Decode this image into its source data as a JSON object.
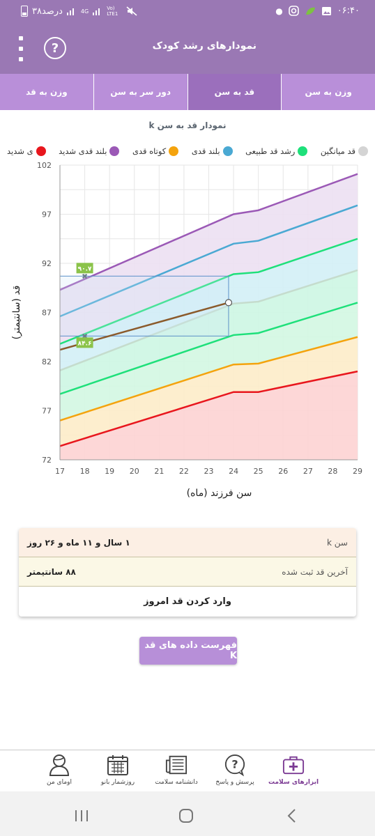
{
  "status_bar": {
    "time": "۰۶:۴۰",
    "battery_text": "۳۸درصد",
    "network_4g": "4G",
    "network_volte": "Vo) LTE1"
  },
  "app_bar": {
    "title": "نمودارهای رشد کودک",
    "help_icon": "help-circle-icon",
    "menu_icon": "more-vertical-icon"
  },
  "tabs": [
    {
      "label": "وزن به سن",
      "active": false
    },
    {
      "label": "قد به سن",
      "active": true
    },
    {
      "label": "دور سر به سن",
      "active": false
    },
    {
      "label": "وزن به قد",
      "active": false
    }
  ],
  "chart_data": {
    "type": "line",
    "title": "نمودار قد به سن k",
    "xlabel": "سن فرزند (ماه)",
    "ylabel": "قد (سانتیمتر)",
    "xlim": [
      17,
      29
    ],
    "ylim": [
      72,
      102
    ],
    "x_ticks": [
      17,
      18,
      19,
      20,
      21,
      22,
      23,
      24,
      25,
      26,
      27,
      28,
      29
    ],
    "y_ticks": [
      72,
      77,
      82,
      87,
      92,
      97,
      102
    ],
    "grid": true,
    "legend_position": "top",
    "series": [
      {
        "name": "ی شدید",
        "color": "#e8161d",
        "fill": "#fdd3d3",
        "x": [
          17,
          24,
          25,
          29
        ],
        "y": [
          73.4,
          78.9,
          78.9,
          81.0
        ]
      },
      {
        "name": "کوتاه قدی",
        "color": "#f4a30d",
        "fill": "#fdecc9",
        "x": [
          17,
          24,
          25,
          29
        ],
        "y": [
          76.0,
          81.7,
          81.8,
          84.5
        ]
      },
      {
        "name": "رشد قد طبیعی",
        "color": "#1ee07a",
        "fill": "#d3f7e2",
        "x": [
          17,
          24,
          25,
          29
        ],
        "y": [
          78.7,
          84.7,
          84.9,
          88.0
        ]
      },
      {
        "name": "قد میانگین",
        "color": "#c5dccd",
        "fill": "#cdf6e3",
        "x": [
          17,
          24,
          25,
          29
        ],
        "y": [
          81.1,
          87.9,
          88.1,
          91.3
        ]
      },
      {
        "name": "رشد قد طبیعی",
        "color": "#1ee07a",
        "fill": "#d3f0f6",
        "x": [
          17,
          24,
          25,
          29
        ],
        "y": [
          83.8,
          90.9,
          91.1,
          94.5
        ]
      },
      {
        "name": "بلند قدی",
        "color": "#4aa9d3",
        "fill": "#ece0f2",
        "x": [
          17,
          24,
          25,
          29
        ],
        "y": [
          86.6,
          94.0,
          94.3,
          97.9
        ]
      },
      {
        "name": "بلند قدی شدید",
        "color": "#9b59b6",
        "fill": null,
        "x": [
          17,
          24,
          25,
          29
        ],
        "y": [
          89.3,
          97.0,
          97.4,
          101.1
        ]
      }
    ],
    "child_series": {
      "name": "قد",
      "color": "#8b5a2b",
      "x": [
        17,
        23.8
      ],
      "y": [
        83.2,
        88.0
      ]
    },
    "legend": [
      {
        "label": "ی شدید",
        "color": "#e8161d"
      },
      {
        "label": "بلند قدی شدید",
        "color": "#9b59b6"
      },
      {
        "label": "کوتاه قدی",
        "color": "#f4a30d"
      },
      {
        "label": "بلند قدی",
        "color": "#4aa9d3"
      },
      {
        "label": "رشد قد طبیعی",
        "color": "#1ee07a"
      },
      {
        "label": "قد میانگین",
        "color": "#d4d4d4"
      }
    ],
    "markers": [
      {
        "label": "۹۰.۷",
        "x": 18,
        "y": 90.7
      },
      {
        "label": "۸۴.۶",
        "x": 18,
        "y": 84.6
      }
    ],
    "highlight_box": {
      "x0": 17,
      "x1": 23.8,
      "y0": 84.6,
      "y1": 90.7
    }
  },
  "info_card": {
    "age_label": "سن k",
    "age_value": "۱ سال و ۱۱ ماه و ۲۶ روز",
    "last_height_label": "آخرین قد ثبت شده",
    "last_height_value": "۸۸ سانتیمتر",
    "action_label": "وارد کردن قد امروز"
  },
  "list_button": "فهرست داده های قد K",
  "bottom_nav": [
    {
      "label": "ابزارهای سلامت",
      "icon": "medical-kit-icon",
      "active": true
    },
    {
      "label": "پرسش و پاسخ",
      "icon": "question-bubble-icon",
      "active": false
    },
    {
      "label": "دانشنامه سلامت",
      "icon": "newspaper-icon",
      "active": false
    },
    {
      "label": "روزشمار بانو",
      "icon": "calendar-icon",
      "active": false
    },
    {
      "label": "اومای من",
      "icon": "user-avatar-icon",
      "active": false
    }
  ]
}
